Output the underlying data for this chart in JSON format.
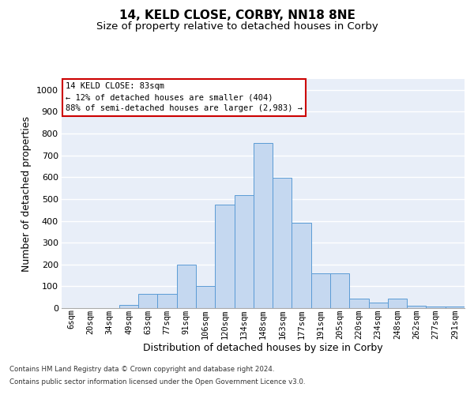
{
  "title1": "14, KELD CLOSE, CORBY, NN18 8NE",
  "title2": "Size of property relative to detached houses in Corby",
  "xlabel": "Distribution of detached houses by size in Corby",
  "ylabel": "Number of detached properties",
  "categories": [
    "6sqm",
    "20sqm",
    "34sqm",
    "49sqm",
    "63sqm",
    "77sqm",
    "91sqm",
    "106sqm",
    "120sqm",
    "134sqm",
    "148sqm",
    "163sqm",
    "177sqm",
    "191sqm",
    "205sqm",
    "220sqm",
    "234sqm",
    "248sqm",
    "262sqm",
    "277sqm",
    "291sqm"
  ],
  "values": [
    0,
    0,
    0,
    13,
    65,
    65,
    200,
    100,
    473,
    519,
    757,
    596,
    390,
    160,
    160,
    42,
    27,
    44,
    12,
    7,
    7
  ],
  "bar_color": "#c5d8f0",
  "bar_edge_color": "#5b9bd5",
  "annotation_text": "14 KELD CLOSE: 83sqm\n← 12% of detached houses are smaller (404)\n88% of semi-detached houses are larger (2,983) →",
  "annotation_box_face": "#ffffff",
  "annotation_box_edge": "#cc0000",
  "ylim_max": 1050,
  "yticks": [
    0,
    100,
    200,
    300,
    400,
    500,
    600,
    700,
    800,
    900,
    1000
  ],
  "plot_bg": "#e8eef8",
  "grid_color": "#ffffff",
  "footer1": "Contains HM Land Registry data © Crown copyright and database right 2024.",
  "footer2": "Contains public sector information licensed under the Open Government Licence v3.0."
}
